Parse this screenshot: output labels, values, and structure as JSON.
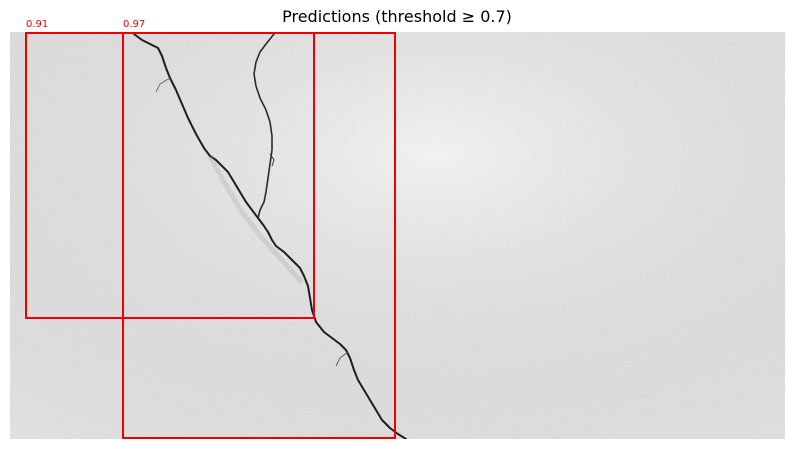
{
  "figure": {
    "title": "Predictions (threshold ≥ 0.7)"
  },
  "colors": {
    "box": "#ee0000",
    "surface": "#e9e9e9",
    "crack": "#1e1e1e",
    "title_text": "#000000"
  },
  "detections": [
    {
      "label": "0.91",
      "score": 0.91
    },
    {
      "label": "0.97",
      "score": 0.97
    }
  ],
  "image": {
    "subject": "concrete surface with diagonal crack"
  }
}
